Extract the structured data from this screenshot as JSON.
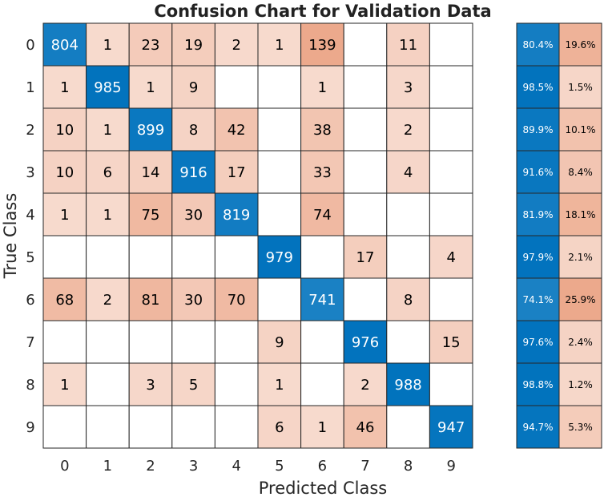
{
  "chart_data": {
    "type": "heatmap",
    "title": "Confusion Chart for Validation Data",
    "xlabel": "Predicted Class",
    "ylabel": "True Class",
    "classes": [
      "0",
      "1",
      "2",
      "3",
      "4",
      "5",
      "6",
      "7",
      "8",
      "9"
    ],
    "matrix": [
      [
        804,
        1,
        23,
        19,
        2,
        1,
        139,
        0,
        11,
        0
      ],
      [
        1,
        985,
        1,
        9,
        0,
        0,
        1,
        0,
        3,
        0
      ],
      [
        10,
        1,
        899,
        8,
        42,
        0,
        38,
        0,
        2,
        0
      ],
      [
        10,
        6,
        14,
        916,
        17,
        0,
        33,
        0,
        4,
        0
      ],
      [
        1,
        1,
        75,
        30,
        819,
        0,
        74,
        0,
        0,
        0
      ],
      [
        0,
        0,
        0,
        0,
        0,
        979,
        0,
        17,
        0,
        4
      ],
      [
        68,
        2,
        81,
        30,
        70,
        0,
        741,
        0,
        8,
        0
      ],
      [
        0,
        0,
        0,
        0,
        0,
        9,
        0,
        976,
        0,
        15
      ],
      [
        1,
        0,
        3,
        5,
        0,
        1,
        0,
        2,
        988,
        0
      ],
      [
        0,
        0,
        0,
        0,
        0,
        6,
        1,
        46,
        0,
        947
      ]
    ],
    "row_summary": [
      {
        "correct": "80.4%",
        "incorrect": "19.6%"
      },
      {
        "correct": "98.5%",
        "incorrect": "1.5%"
      },
      {
        "correct": "89.9%",
        "incorrect": "10.1%"
      },
      {
        "correct": "91.6%",
        "incorrect": "8.4%"
      },
      {
        "correct": "81.9%",
        "incorrect": "18.1%"
      },
      {
        "correct": "97.9%",
        "incorrect": "2.1%"
      },
      {
        "correct": "74.1%",
        "incorrect": "25.9%"
      },
      {
        "correct": "97.6%",
        "incorrect": "2.4%"
      },
      {
        "correct": "98.8%",
        "incorrect": "1.2%"
      },
      {
        "correct": "94.7%",
        "incorrect": "5.3%"
      }
    ],
    "colors": {
      "diagonal_dark": "#0072BD",
      "off_diagonal_light": "#D95319",
      "grid": "#262626"
    }
  }
}
